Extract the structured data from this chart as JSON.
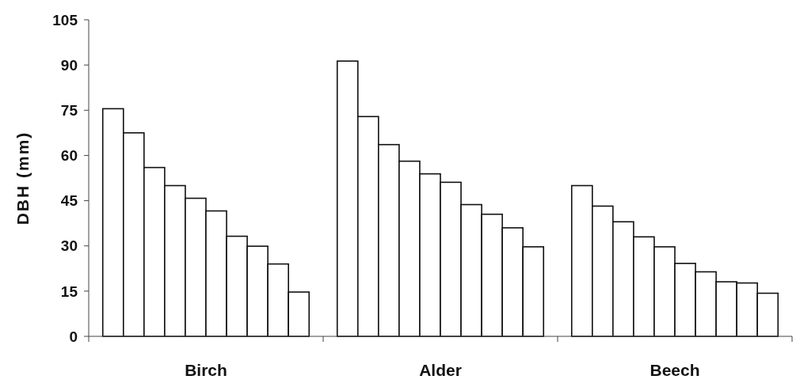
{
  "chart_data": {
    "type": "bar",
    "ylabel": "DBH (mm)",
    "categories": [
      "Birch",
      "Alder",
      "Beech"
    ],
    "series": [
      {
        "color": "#ffffff",
        "values": [
          75.5,
          91.3,
          50
        ]
      },
      {
        "color": "#ffffff",
        "values": [
          67.5,
          72.9,
          43.2
        ]
      },
      {
        "color": "#ffffff",
        "values": [
          56,
          63.6,
          38
        ]
      },
      {
        "color": "#ffffff",
        "values": [
          50,
          58.1,
          33
        ]
      },
      {
        "color": "#ffffff",
        "values": [
          45.8,
          53.9,
          29.7
        ]
      },
      {
        "color": "#ffffff",
        "values": [
          41.6,
          51.1,
          24.2
        ]
      },
      {
        "color": "#ffffff",
        "values": [
          33.2,
          43.7,
          21.4
        ]
      },
      {
        "color": "#ffffff",
        "values": [
          29.9,
          40.5,
          18.1
        ]
      },
      {
        "color": "#ffffff",
        "values": [
          24,
          36,
          17.7
        ]
      },
      {
        "color": "#ffffff",
        "values": [
          14.7,
          29.7,
          14.3
        ]
      }
    ],
    "ylim": [
      0,
      105
    ],
    "yticks": [
      0,
      15,
      30,
      45,
      60,
      75,
      90,
      105
    ],
    "grid": false
  }
}
